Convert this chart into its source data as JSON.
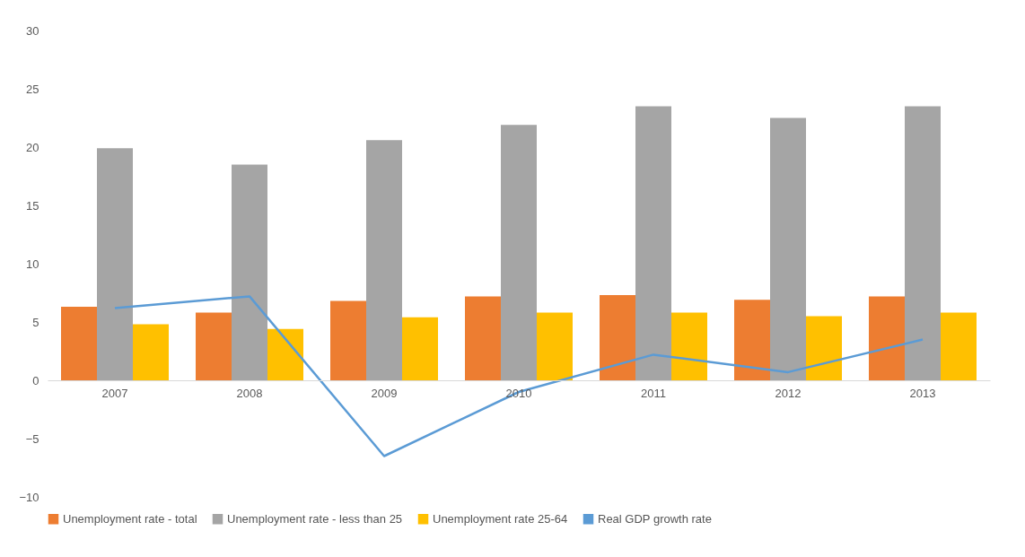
{
  "chart_data": {
    "type": "bar",
    "categories": [
      "2007",
      "2008",
      "2009",
      "2010",
      "2011",
      "2012",
      "2013"
    ],
    "series": [
      {
        "name": "Unemployment rate - total",
        "color": "#ed7d31",
        "values": [
          6.3,
          5.8,
          6.8,
          7.2,
          7.3,
          6.9,
          7.2
        ]
      },
      {
        "name": "Unemployment rate - less than 25",
        "color": "#a5a5a5",
        "values": [
          19.9,
          18.5,
          20.6,
          21.9,
          23.5,
          22.5,
          23.5
        ]
      },
      {
        "name": "Unemployment rate 25-64",
        "color": "#ffc000",
        "values": [
          4.8,
          4.4,
          5.4,
          5.8,
          5.8,
          5.5,
          5.8
        ]
      },
      {
        "name": "Real GDP growth rate",
        "color": "#5b9bd5",
        "type": "line",
        "values": [
          6.2,
          7.2,
          -6.5,
          -1.0,
          2.2,
          0.7,
          3.5
        ]
      }
    ],
    "ylim": [
      -10,
      30
    ],
    "yticks": [
      -10,
      -5,
      0,
      5,
      10,
      15,
      20,
      25,
      30
    ],
    "grid": false,
    "legend": "bottom",
    "marker": "none"
  }
}
